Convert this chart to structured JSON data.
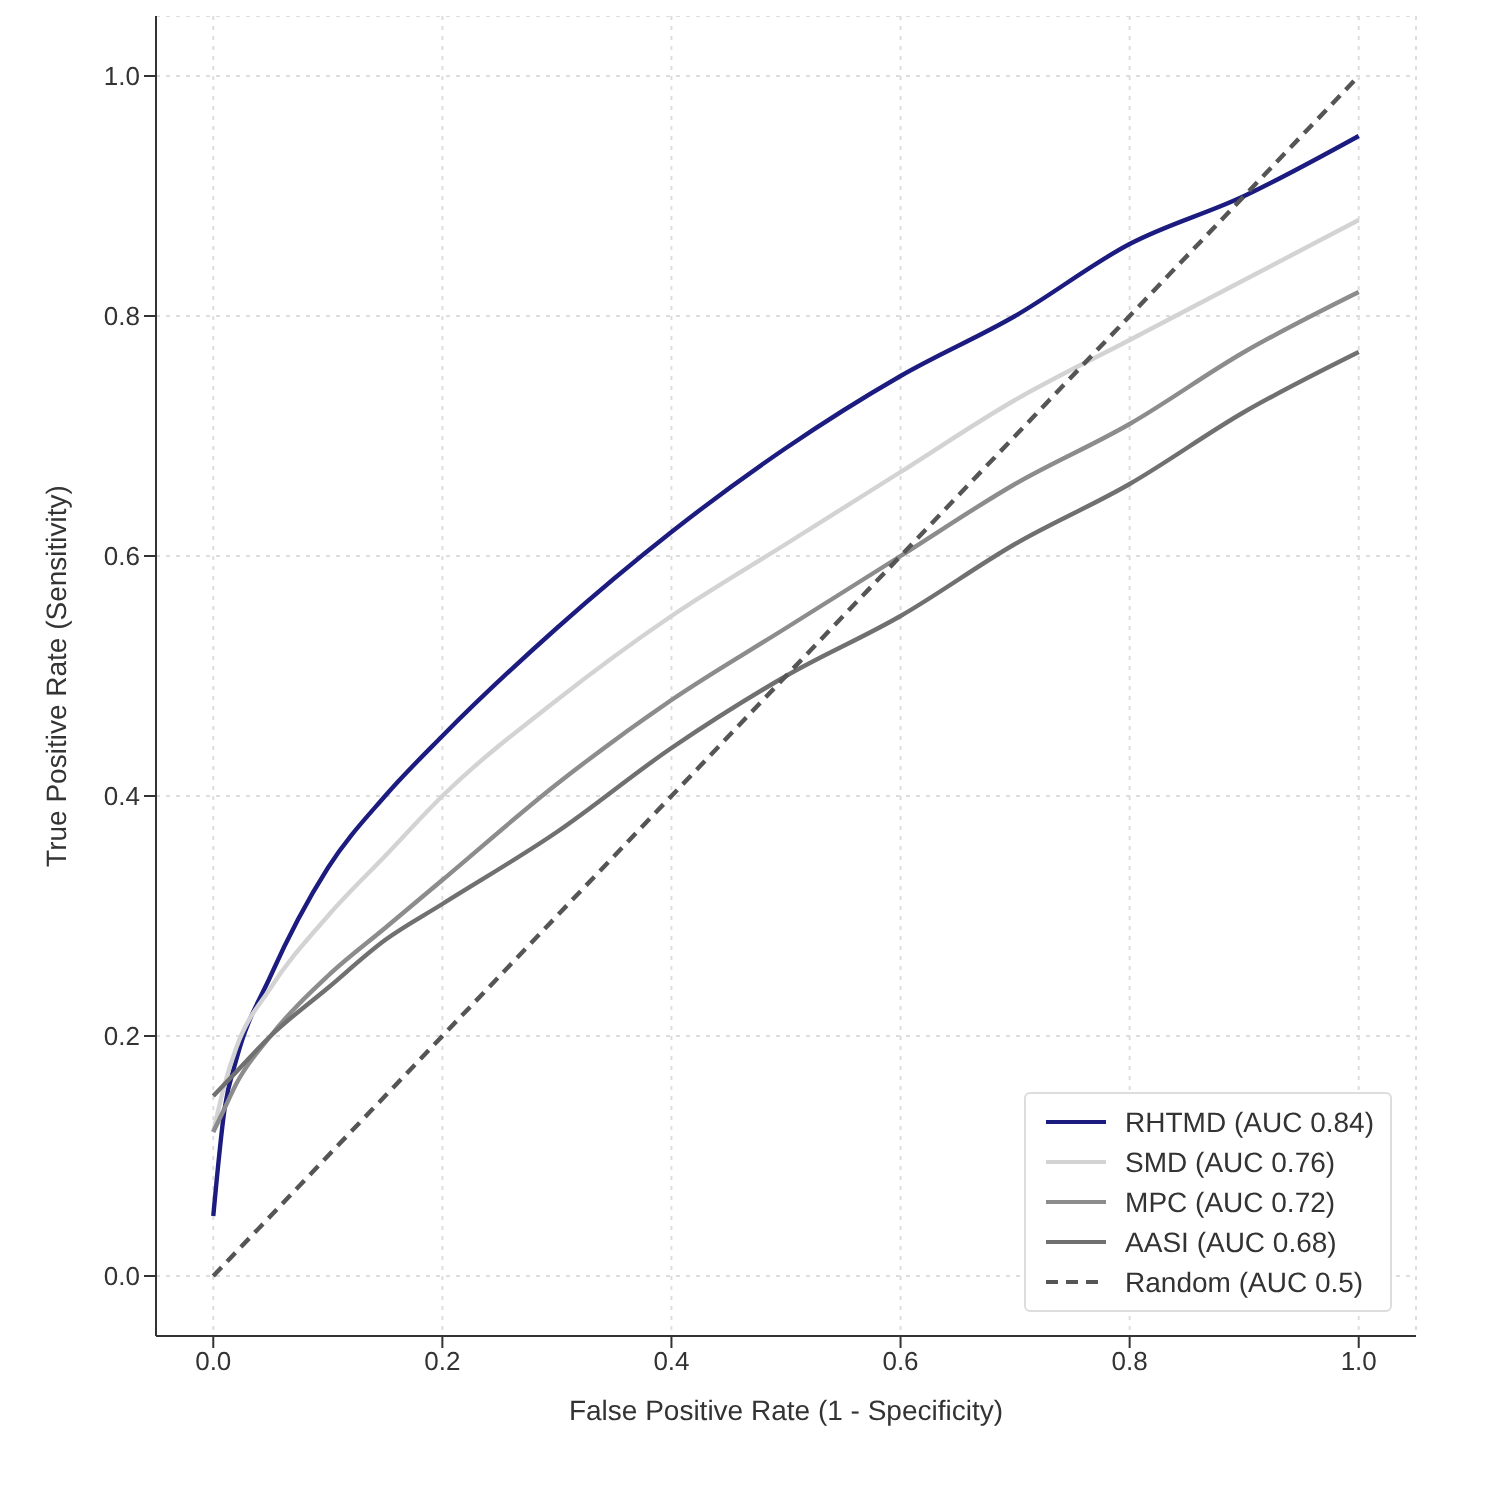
{
  "chart_data": {
    "type": "line",
    "xlabel": "False Positive Rate (1 - Specificity)",
    "ylabel": "True Positive Rate (Sensitivity)",
    "x": [
      0,
      0.01,
      0.02,
      0.05,
      0.1,
      0.15,
      0.2,
      0.3,
      0.4,
      0.5,
      0.6,
      0.7,
      0.8,
      0.9,
      1.0
    ],
    "series": [
      {
        "name": "RHTMD (AUC 0.84)",
        "color": "#1c1c80",
        "values": [
          0.05,
          0.14,
          0.18,
          0.25,
          0.34,
          0.4,
          0.45,
          0.54,
          0.62,
          0.69,
          0.75,
          0.8,
          0.86,
          0.9,
          0.95
        ]
      },
      {
        "name": "SMD (AUC 0.76)",
        "color": "#d3d3d3",
        "values": [
          0.12,
          0.16,
          0.19,
          0.24,
          0.3,
          0.35,
          0.4,
          0.48,
          0.55,
          0.61,
          0.67,
          0.73,
          0.78,
          0.83,
          0.88
        ]
      },
      {
        "name": "MPC (AUC 0.72)",
        "color": "#8c8c8c",
        "values": [
          0.12,
          0.14,
          0.16,
          0.2,
          0.25,
          0.29,
          0.33,
          0.41,
          0.48,
          0.54,
          0.6,
          0.66,
          0.71,
          0.77,
          0.82
        ]
      },
      {
        "name": "AASI (AUC 0.68)",
        "color": "#707070",
        "values": [
          0.15,
          0.16,
          0.17,
          0.2,
          0.24,
          0.28,
          0.31,
          0.37,
          0.44,
          0.5,
          0.55,
          0.61,
          0.66,
          0.72,
          0.77
        ]
      },
      {
        "name": "Random (AUC 0.5)",
        "color": "#555555",
        "line_style": "dashed",
        "values": [
          0,
          0.01,
          0.02,
          0.05,
          0.1,
          0.15,
          0.2,
          0.3,
          0.4,
          0.5,
          0.6,
          0.7,
          0.8,
          0.9,
          1.0
        ]
      }
    ],
    "xlim": [
      -0.05,
      1.05
    ],
    "ylim": [
      -0.05,
      1.05
    ],
    "xticks": [
      {
        "value": 0,
        "label": "0.0"
      },
      {
        "value": 0.2,
        "label": "0.2"
      },
      {
        "value": 0.4,
        "label": "0.4"
      },
      {
        "value": 0.6,
        "label": "0.6"
      },
      {
        "value": 0.8,
        "label": "0.8"
      },
      {
        "value": 1,
        "label": "1.0"
      }
    ],
    "yticks": [
      {
        "value": 0,
        "label": "0.0"
      },
      {
        "value": 0.2,
        "label": "0.2"
      },
      {
        "value": 0.4,
        "label": "0.4"
      },
      {
        "value": 0.6,
        "label": "0.6"
      },
      {
        "value": 0.8,
        "label": "0.8"
      },
      {
        "value": 1,
        "label": "1.0"
      }
    ],
    "grid": true,
    "legend": "bottom right",
    "marker": "none"
  }
}
